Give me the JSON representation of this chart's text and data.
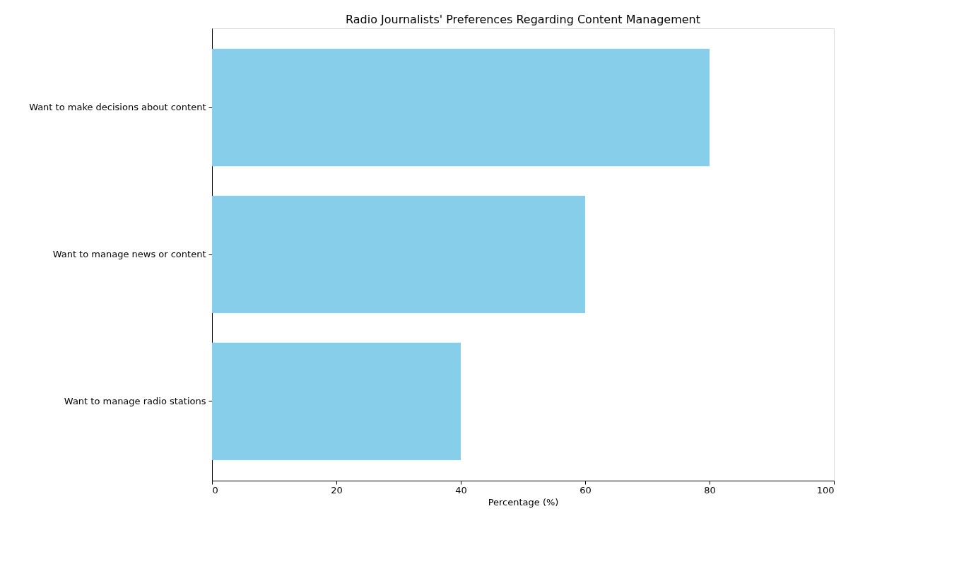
{
  "chart_data": {
    "type": "bar",
    "orientation": "horizontal",
    "title": "Radio Journalists' Preferences Regarding Content Management",
    "xlabel": "Percentage (%)",
    "categories": [
      "Want to make decisions about content",
      "Want to manage news or content",
      "Want to manage radio stations"
    ],
    "values": [
      80,
      60,
      40
    ],
    "color": "#87ceeb",
    "xlim": [
      0,
      100
    ],
    "xticks": [
      0,
      20,
      40,
      60,
      80,
      100
    ],
    "grid": false
  }
}
